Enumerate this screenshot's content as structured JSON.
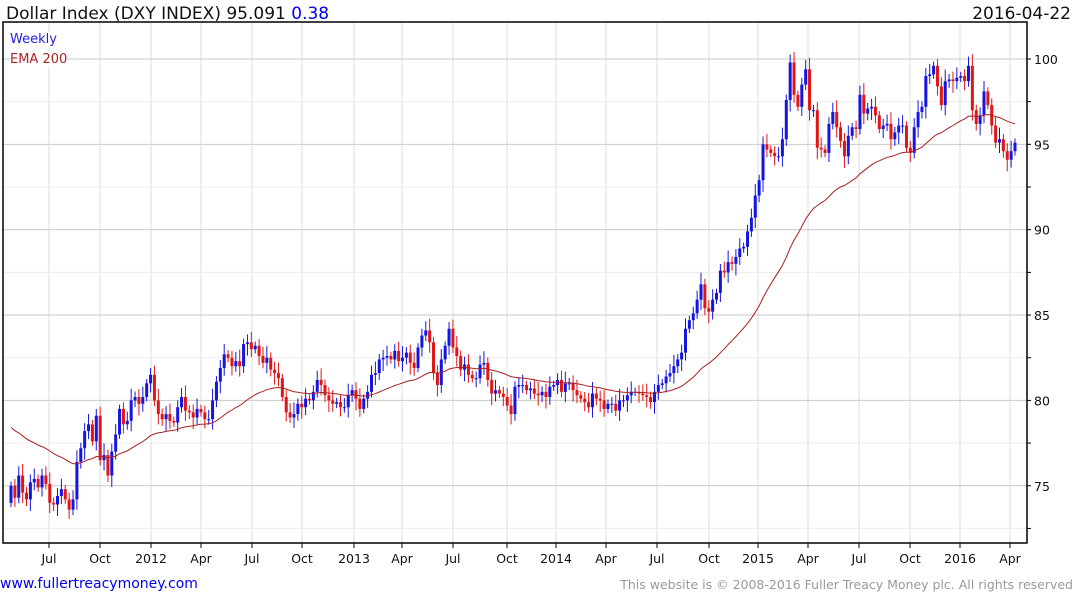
{
  "header": {
    "title": "Dollar Index (DXY INDEX) 95.091",
    "change": "0.38",
    "date": "2016-04-22"
  },
  "legend": {
    "series": "Weekly",
    "ema": "EMA 200"
  },
  "footer": {
    "link": "www.fullertreacymoney.com",
    "copyright": "This website is © 2008-2016 Fuller Treacy Money plc. All rights reserved"
  },
  "colors": {
    "up": "#1515e0",
    "down": "#e01515",
    "ema": "#aa2020",
    "grid": "#dcdcdc"
  },
  "chart_data": {
    "type": "candlestick",
    "title": "Dollar Index (DXY INDEX)",
    "frequency": "Weekly",
    "ylim": [
      72,
      102
    ],
    "yticks": [
      75,
      80,
      85,
      90,
      95,
      100
    ],
    "xtick_labels": [
      "Jul",
      "Oct",
      "2012",
      "Apr",
      "Jul",
      "Oct",
      "2013",
      "Apr",
      "Jul",
      "Oct",
      "2014",
      "Apr",
      "Jul",
      "Oct",
      "2015",
      "Apr",
      "Jul",
      "Oct",
      "2016",
      "Apr"
    ],
    "ema_period": 40,
    "ema_seed": 78.6,
    "open_first": 74.0,
    "closes": [
      75.0,
      74.3,
      75.6,
      74.6,
      74.2,
      75.2,
      75.4,
      74.9,
      75.6,
      75.1,
      74.0,
      73.9,
      74.4,
      74.8,
      74.2,
      73.6,
      74.2,
      76.4,
      77.2,
      78.2,
      78.6,
      77.6,
      79.1,
      76.5,
      76.8,
      75.6,
      77.0,
      78.0,
      79.5,
      78.6,
      78.8,
      80.0,
      80.2,
      79.8,
      80.2,
      81.0,
      81.5,
      80.0,
      79.2,
      78.9,
      79.2,
      78.8,
      78.7,
      79.6,
      80.2,
      79.4,
      79.3,
      79.0,
      79.5,
      79.3,
      78.9,
      78.9,
      80.0,
      81.1,
      81.9,
      82.7,
      82.5,
      82.0,
      82.3,
      82.0,
      83.3,
      83.4,
      83.0,
      83.2,
      82.6,
      82.2,
      82.5,
      81.8,
      81.6,
      81.3,
      80.2,
      79.3,
      79.0,
      79.2,
      79.8,
      79.6,
      80.1,
      80.0,
      80.5,
      81.2,
      80.9,
      80.3,
      80.0,
      79.8,
      79.9,
      79.6,
      79.6,
      80.3,
      80.6,
      80.1,
      79.5,
      80.1,
      80.5,
      81.5,
      81.6,
      82.4,
      82.5,
      82.6,
      82.4,
      82.9,
      82.3,
      82.5,
      82.8,
      82.2,
      81.9,
      83.1,
      83.8,
      84.1,
      83.4,
      81.6,
      80.9,
      82.4,
      83.2,
      84.2,
      83.1,
      82.6,
      81.8,
      82.1,
      81.5,
      81.3,
      81.3,
      82.1,
      82.2,
      81.2,
      80.4,
      80.6,
      80.4,
      80.2,
      79.7,
      79.2,
      80.8,
      80.9,
      80.9,
      80.6,
      80.7,
      80.4,
      80.3,
      80.5,
      80.2,
      80.8,
      80.9,
      81.2,
      80.5,
      81.0,
      81.0,
      80.6,
      80.3,
      80.1,
      79.9,
      79.6,
      80.4,
      80.1,
      80.0,
      79.5,
      79.8,
      79.8,
      79.4,
      80.0,
      80.0,
      80.3,
      80.5,
      80.5,
      80.4,
      80.3,
      80.2,
      79.9,
      80.5,
      80.9,
      81.0,
      81.4,
      81.6,
      82.0,
      82.4,
      82.8,
      84.2,
      84.7,
      85.1,
      85.9,
      86.8,
      85.4,
      85.2,
      85.9,
      86.3,
      87.6,
      87.5,
      88.1,
      88.0,
      88.4,
      88.9,
      89.0,
      89.9,
      90.7,
      92.0,
      92.9,
      95.0,
      94.7,
      94.5,
      94.3,
      94.3,
      95.3,
      97.6,
      99.8,
      97.9,
      97.2,
      98.5,
      99.4,
      97.0,
      97.0,
      94.8,
      94.7,
      94.5,
      96.2,
      96.9,
      96.0,
      95.2,
      94.3,
      95.5,
      96.0,
      95.9,
      97.9,
      96.8,
      97.1,
      97.2,
      96.7,
      95.9,
      96.1,
      96.2,
      95.3,
      95.7,
      96.1,
      96.1,
      94.8,
      94.5,
      96.0,
      96.9,
      97.2,
      99.0,
      99.1,
      99.6,
      98.4,
      97.3,
      98.7,
      98.8,
      98.7,
      98.9,
      99.0,
      98.7,
      99.6,
      97.0,
      96.2,
      96.7,
      98.1,
      97.3,
      96.1,
      95.1,
      95.3,
      94.6,
      94.1,
      94.6,
      95.1
    ]
  }
}
